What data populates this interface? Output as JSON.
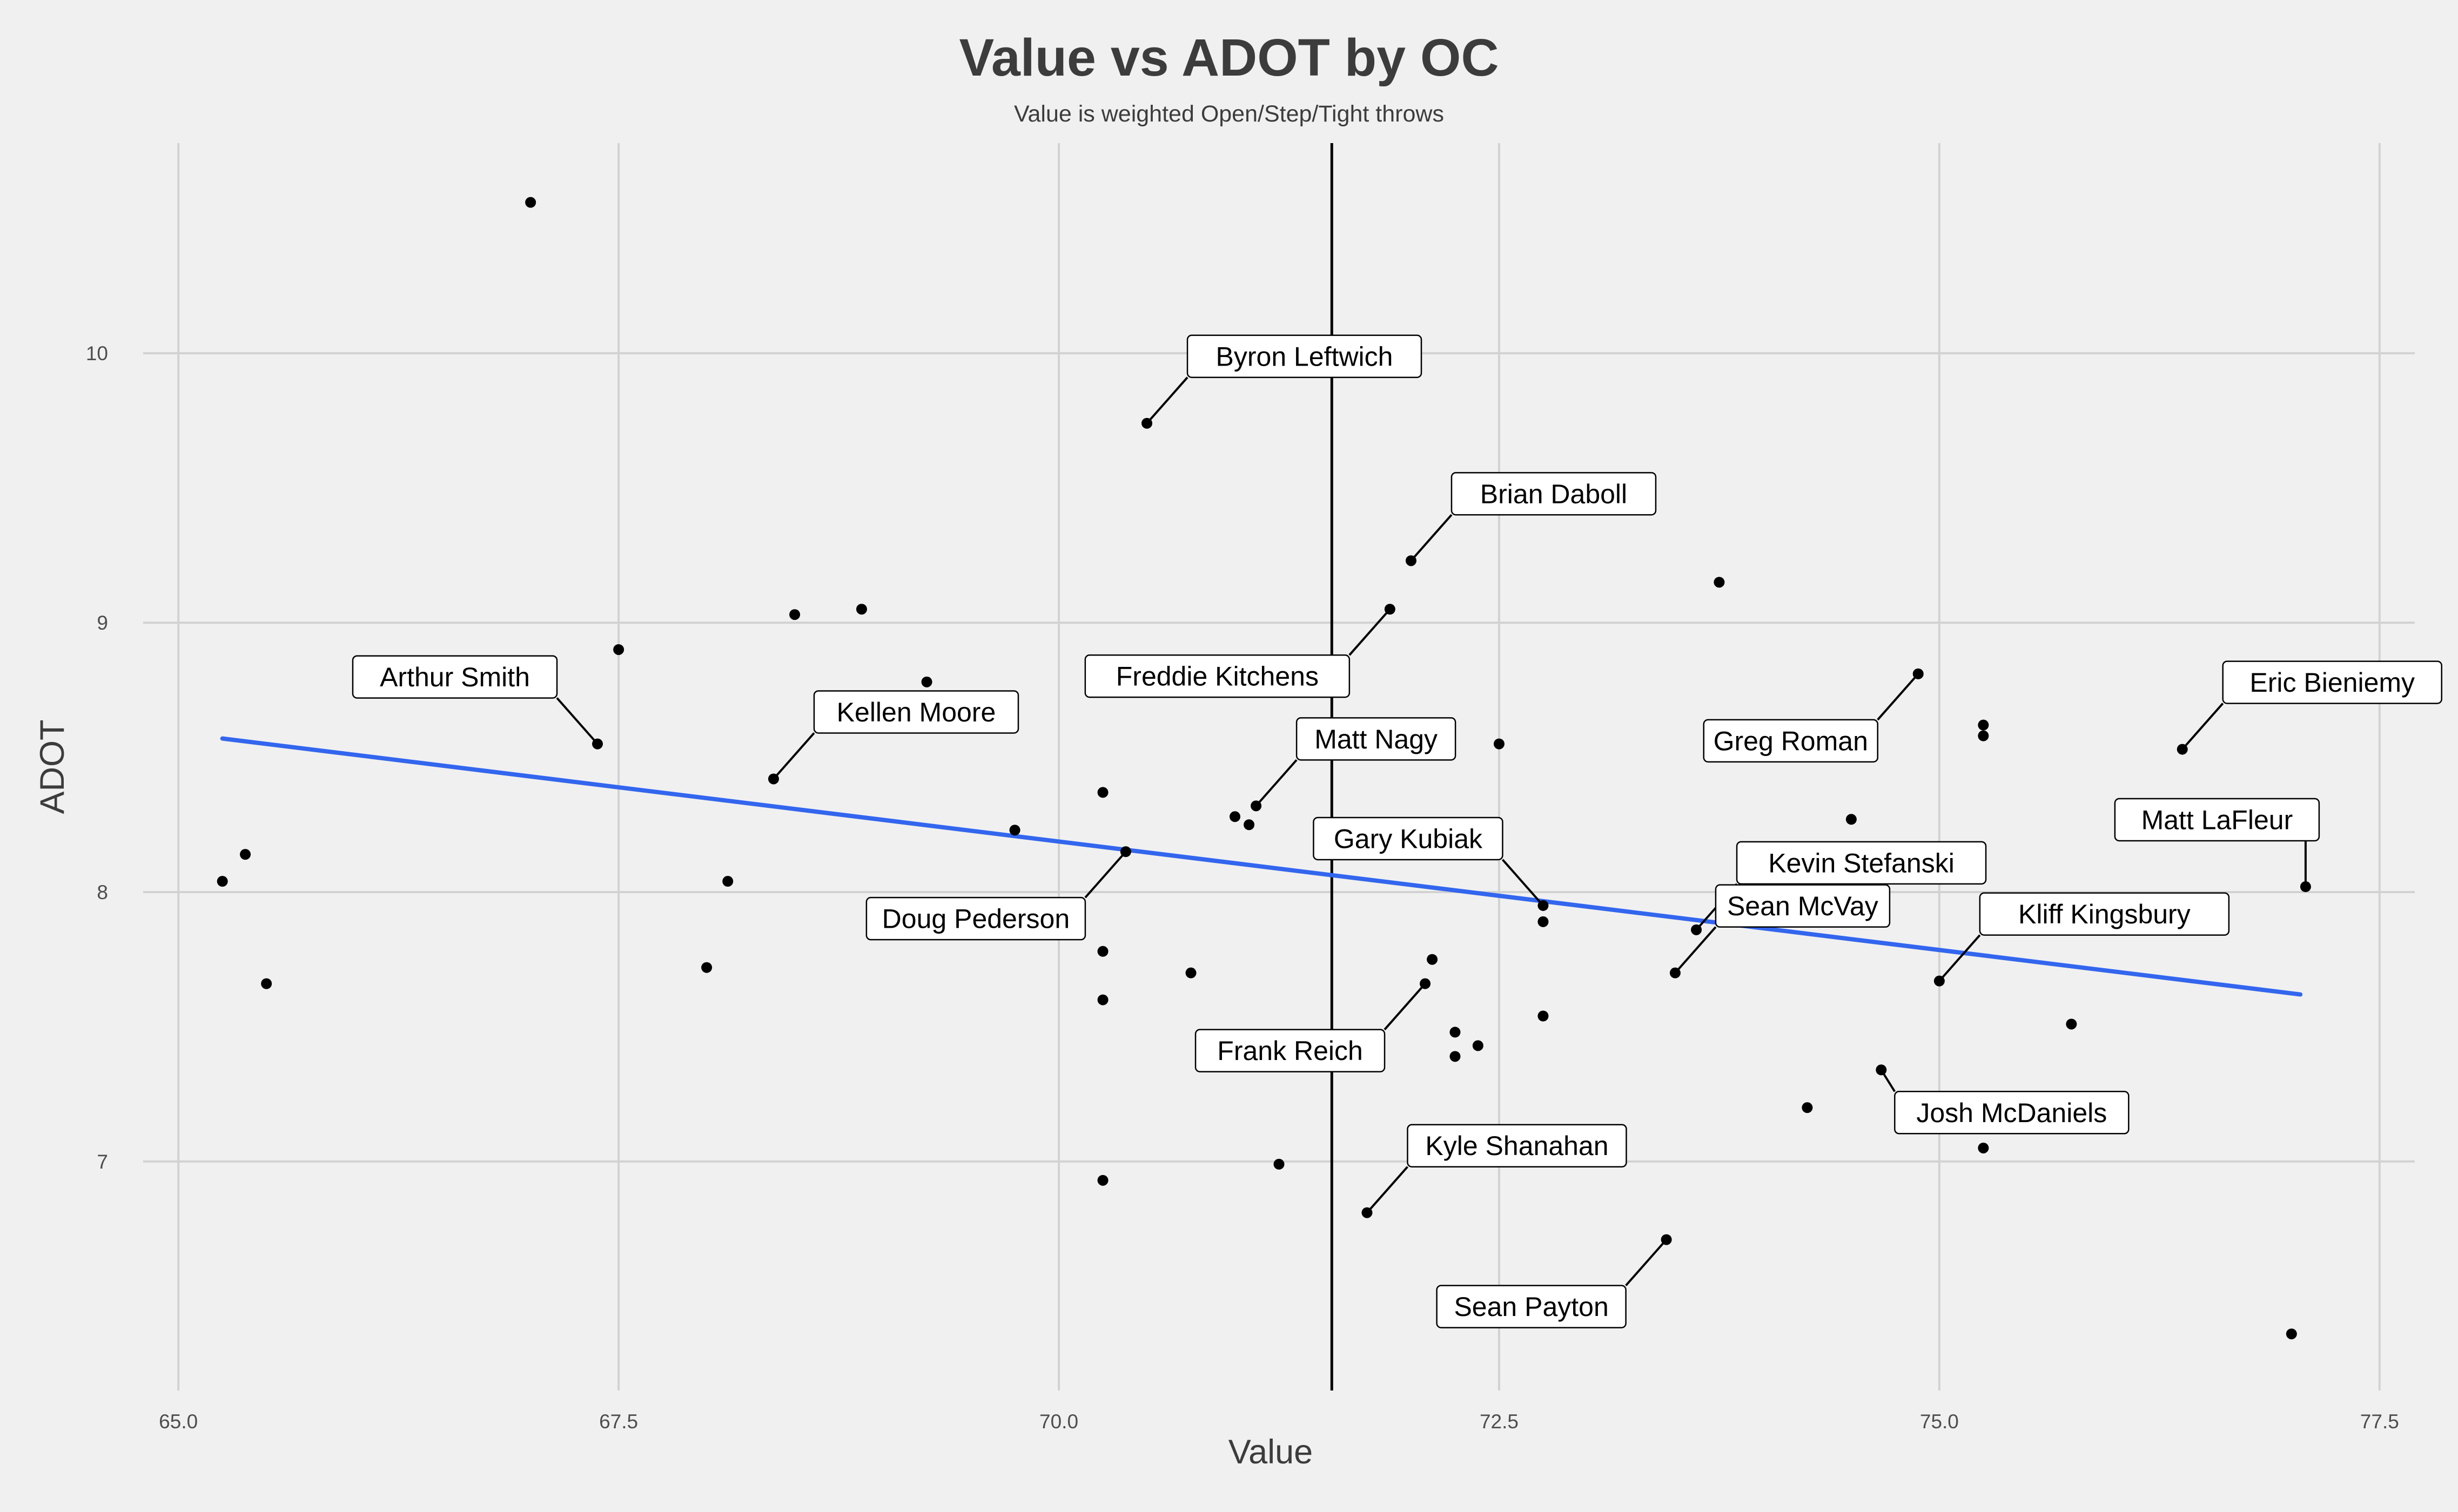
{
  "chart_data": {
    "type": "scatter",
    "title": "Value vs ADOT by OC",
    "subtitle": "Value is weighted Open/Step/Tight throws",
    "xlabel": "Value",
    "ylabel": "ADOT",
    "xlim": [
      64.8,
      77.7
    ],
    "ylim": [
      6.15,
      10.78
    ],
    "x_ticks": [
      65.0,
      67.5,
      70.0,
      72.5,
      75.0,
      77.5
    ],
    "x_tick_labels": [
      "65.0",
      "67.5",
      "70.0",
      "72.5",
      "75.0",
      "77.5"
    ],
    "y_ticks": [
      7,
      8,
      9,
      10
    ],
    "y_tick_labels": [
      "7",
      "8",
      "9",
      "10"
    ],
    "grid": true,
    "vertical_reference_x": 71.55,
    "trend_line": {
      "color": "#3366ee",
      "x": [
        65.25,
        77.05
      ],
      "y": [
        8.57,
        7.62
      ]
    },
    "point_color": "#000000",
    "points": [
      {
        "x": 67.0,
        "y": 10.56
      },
      {
        "x": 65.25,
        "y": 8.04
      },
      {
        "x": 65.38,
        "y": 8.14
      },
      {
        "x": 65.5,
        "y": 7.66
      },
      {
        "x": 67.5,
        "y": 8.9
      },
      {
        "x": 68.0,
        "y": 7.72
      },
      {
        "x": 68.12,
        "y": 8.04
      },
      {
        "x": 68.5,
        "y": 9.03
      },
      {
        "x": 68.88,
        "y": 9.05
      },
      {
        "x": 69.25,
        "y": 8.78
      },
      {
        "x": 69.75,
        "y": 8.23
      },
      {
        "x": 70.0,
        "y": 7.88
      },
      {
        "x": 70.25,
        "y": 8.37
      },
      {
        "x": 70.25,
        "y": 7.78
      },
      {
        "x": 70.25,
        "y": 7.6
      },
      {
        "x": 70.25,
        "y": 6.93
      },
      {
        "x": 70.75,
        "y": 7.7
      },
      {
        "x": 71.0,
        "y": 8.28
      },
      {
        "x": 71.08,
        "y": 8.25
      },
      {
        "x": 71.25,
        "y": 6.99
      },
      {
        "x": 72.12,
        "y": 7.75
      },
      {
        "x": 72.25,
        "y": 7.48
      },
      {
        "x": 72.25,
        "y": 7.39
      },
      {
        "x": 72.38,
        "y": 7.43
      },
      {
        "x": 72.5,
        "y": 8.55
      },
      {
        "x": 72.75,
        "y": 7.89
      },
      {
        "x": 72.75,
        "y": 7.54
      },
      {
        "x": 73.75,
        "y": 9.15
      },
      {
        "x": 74.25,
        "y": 7.2
      },
      {
        "x": 74.5,
        "y": 8.27
      },
      {
        "x": 75.25,
        "y": 8.62
      },
      {
        "x": 75.25,
        "y": 8.58
      },
      {
        "x": 75.25,
        "y": 7.05
      },
      {
        "x": 75.75,
        "y": 7.51
      },
      {
        "x": 77.0,
        "y": 6.36
      }
    ],
    "labeled_points": [
      {
        "name": "Byron Leftwich",
        "x": 70.5,
        "y": 9.74,
        "label_side": "upper-right"
      },
      {
        "name": "Brian Daboll",
        "x": 72.0,
        "y": 9.23,
        "label_side": "upper-right"
      },
      {
        "name": "Freddie Kitchens",
        "x": 71.88,
        "y": 9.05,
        "label_side": "lower-left"
      },
      {
        "name": "Arthur Smith",
        "x": 67.38,
        "y": 8.55,
        "label_side": "upper-left"
      },
      {
        "name": "Kellen Moore",
        "x": 68.38,
        "y": 8.42,
        "label_side": "upper-right"
      },
      {
        "name": "Matt Nagy",
        "x": 71.12,
        "y": 8.32,
        "label_side": "upper-right"
      },
      {
        "name": "Doug Pederson",
        "x": 70.38,
        "y": 8.15,
        "label_side": "lower-left"
      },
      {
        "name": "Gary Kubiak",
        "x": 72.75,
        "y": 7.95,
        "label_side": "upper-left"
      },
      {
        "name": "Kevin Stefanski",
        "x": 73.62,
        "y": 7.86,
        "label_side": "upper-right"
      },
      {
        "name": "Sean McVay",
        "x": 73.5,
        "y": 7.7,
        "label_side": "upper-right"
      },
      {
        "name": "Frank Reich",
        "x": 72.08,
        "y": 7.66,
        "label_side": "lower-left"
      },
      {
        "name": "Greg Roman",
        "x": 74.88,
        "y": 8.81,
        "label_side": "lower-left"
      },
      {
        "name": "Eric Bieniemy",
        "x": 76.38,
        "y": 8.53,
        "label_side": "upper-right"
      },
      {
        "name": "Matt LaFleur",
        "x": 77.08,
        "y": 8.02,
        "label_side": "upper"
      },
      {
        "name": "Kliff Kingsbury",
        "x": 75.0,
        "y": 7.67,
        "label_side": "upper-right"
      },
      {
        "name": "Josh McDaniels",
        "x": 74.67,
        "y": 7.34,
        "label_side": "lower-right"
      },
      {
        "name": "Kyle Shanahan",
        "x": 71.75,
        "y": 6.81,
        "label_side": "upper-right"
      },
      {
        "name": "Sean Payton",
        "x": 73.45,
        "y": 6.71,
        "label_side": "lower-left"
      }
    ]
  }
}
